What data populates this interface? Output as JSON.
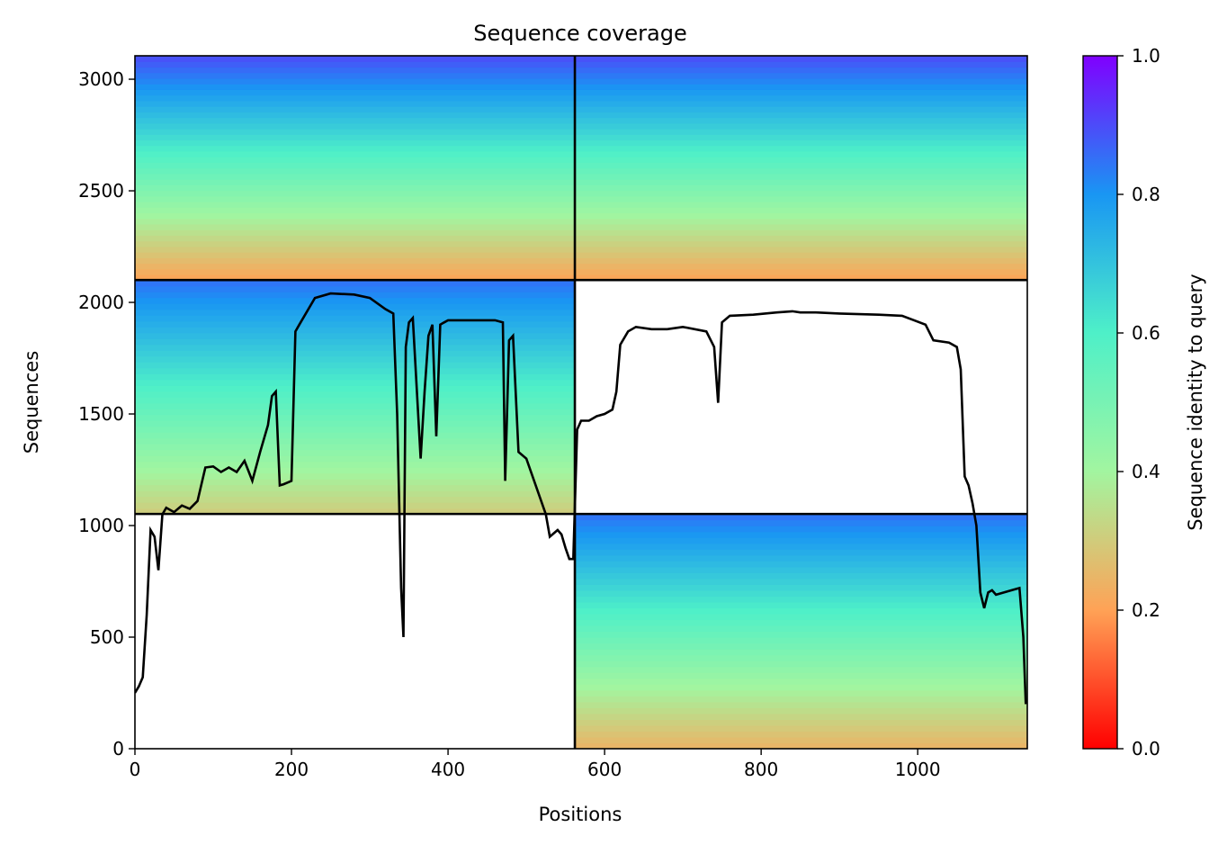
{
  "chart_data": {
    "type": "heatmap",
    "title": "Sequence coverage",
    "xlabel": "Positions",
    "ylabel": "Sequences",
    "xlim": [
      0,
      1140
    ],
    "ylim": [
      0,
      3105
    ],
    "xticks": [
      0,
      200,
      400,
      600,
      800,
      1000
    ],
    "yticks": [
      0,
      500,
      1000,
      1500,
      2000,
      2500,
      3000
    ],
    "grid": false,
    "colormap": "rainbow_r",
    "colorbar": {
      "label": "Sequence identity to query",
      "range": [
        0,
        1
      ],
      "ticks": [
        "0.0",
        "0.2",
        "0.4",
        "0.6",
        "0.8",
        "1.0"
      ]
    },
    "chain_boundaries": {
      "x": [
        562
      ],
      "y": [
        1052,
        2100
      ]
    },
    "blocks": [
      {
        "x": [
          0,
          562
        ],
        "y": [
          1052,
          2100
        ],
        "identity_bottom": 0.3,
        "identity_top": 0.85
      },
      {
        "x": [
          562,
          1140
        ],
        "y": [
          0,
          1052
        ],
        "identity_bottom": 0.24,
        "identity_top": 0.85
      },
      {
        "x": [
          0,
          1140
        ],
        "y": [
          2100,
          3105
        ],
        "identity_bottom": 0.2,
        "identity_top": 0.9
      }
    ],
    "coverage_line": {
      "x": [
        0,
        5,
        10,
        15,
        20,
        25,
        30,
        35,
        40,
        50,
        60,
        70,
        80,
        90,
        100,
        110,
        120,
        130,
        140,
        150,
        160,
        170,
        175,
        180,
        185,
        190,
        200,
        205,
        210,
        230,
        250,
        280,
        300,
        320,
        330,
        335,
        340,
        343,
        346,
        350,
        355,
        365,
        370,
        375,
        380,
        385,
        390,
        395,
        400,
        430,
        460,
        470,
        473,
        478,
        483,
        490,
        500,
        510,
        525,
        530,
        540,
        545,
        550,
        555,
        560,
        565,
        570,
        580,
        590,
        600,
        610,
        615,
        620,
        630,
        640,
        660,
        680,
        700,
        730,
        740,
        745,
        750,
        760,
        790,
        820,
        840,
        850,
        870,
        900,
        950,
        980,
        1010,
        1020,
        1040,
        1050,
        1055,
        1060,
        1065,
        1070,
        1075,
        1080,
        1085,
        1090,
        1095,
        1100,
        1110,
        1120,
        1130,
        1135,
        1138
      ],
      "y": [
        250,
        280,
        320,
        600,
        980,
        950,
        800,
        1050,
        1080,
        1060,
        1090,
        1075,
        1110,
        1260,
        1265,
        1240,
        1260,
        1240,
        1290,
        1200,
        1330,
        1450,
        1580,
        1600,
        1180,
        1185,
        1200,
        1870,
        1900,
        2020,
        2040,
        2035,
        2020,
        1970,
        1950,
        1500,
        720,
        500,
        1800,
        1910,
        1930,
        1300,
        1600,
        1850,
        1900,
        1400,
        1900,
        1910,
        1920,
        1920,
        1920,
        1910,
        1200,
        1830,
        1850,
        1330,
        1300,
        1200,
        1050,
        950,
        980,
        960,
        900,
        850,
        850,
        1430,
        1470,
        1470,
        1490,
        1500,
        1520,
        1600,
        1810,
        1870,
        1890,
        1880,
        1880,
        1890,
        1870,
        1800,
        1550,
        1910,
        1940,
        1945,
        1955,
        1960,
        1955,
        1955,
        1950,
        1945,
        1940,
        1900,
        1830,
        1820,
        1800,
        1700,
        1220,
        1180,
        1100,
        1000,
        700,
        630,
        700,
        710,
        690,
        700,
        710,
        720,
        500,
        200
      ]
    }
  }
}
